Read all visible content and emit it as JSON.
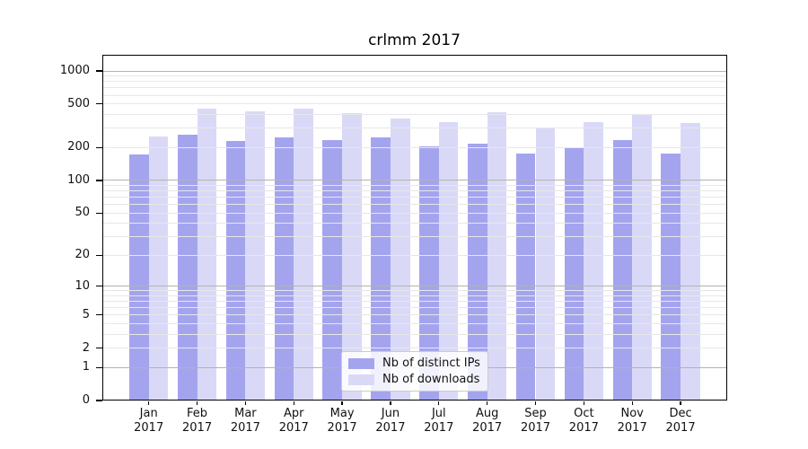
{
  "chart_data": {
    "type": "bar",
    "title": "crlmm 2017",
    "categories": [
      "Jan",
      "Feb",
      "Mar",
      "Apr",
      "May",
      "Jun",
      "Jul",
      "Aug",
      "Sep",
      "Oct",
      "Nov",
      "Dec"
    ],
    "year_label": "2017",
    "series": [
      {
        "key": "distinct-ips",
        "name": "Nb of distinct IPs",
        "color": "#a4a4ee",
        "values": [
          174,
          264,
          229,
          249,
          233,
          247,
          207,
          218,
          176,
          201,
          232,
          175
        ]
      },
      {
        "key": "downloads",
        "name": "Nb of downloads",
        "color": "#d9d9f7",
        "values": [
          251,
          453,
          432,
          453,
          410,
          368,
          339,
          418,
          298,
          339,
          405,
          335
        ]
      }
    ],
    "y_scale": "log10(1+v)",
    "y_ticks": [
      0,
      1,
      2,
      5,
      10,
      20,
      50,
      100,
      200,
      500,
      1000
    ],
    "ylim": [
      0,
      1400
    ],
    "gridlines_dark": [
      1,
      10,
      100,
      1000
    ],
    "gridlines_light": [
      2,
      3,
      4,
      5,
      6,
      7,
      8,
      9,
      20,
      30,
      40,
      50,
      60,
      70,
      80,
      90,
      200,
      300,
      400,
      500,
      600,
      700,
      800,
      900
    ],
    "grid": "horizontal",
    "legend_position": "lower center",
    "colors": {
      "grid_dark": "#b2b2b2",
      "grid_light": "#e7e7ea",
      "axis_frame": "#000000",
      "background": "#ffffff"
    }
  }
}
